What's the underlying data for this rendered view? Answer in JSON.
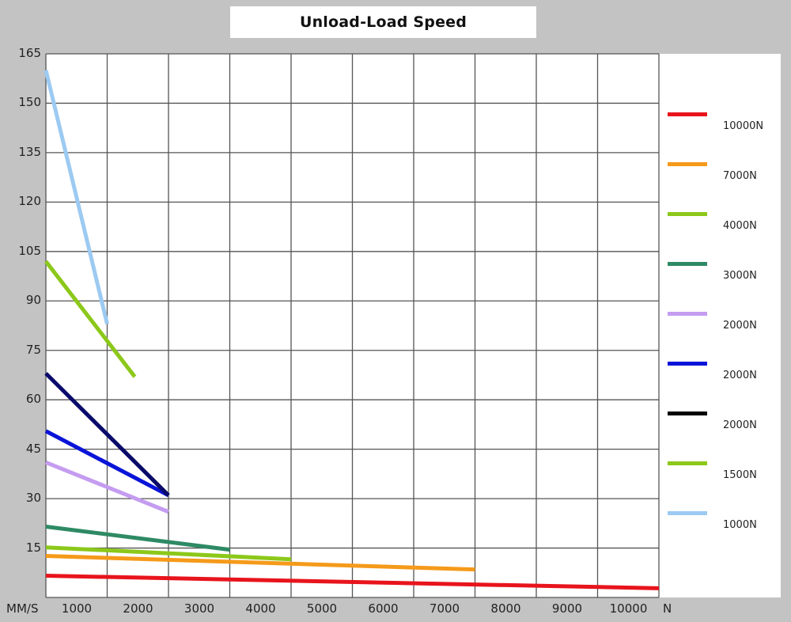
{
  "chart_data": {
    "type": "line",
    "title": "Unload-Load Speed",
    "xlabel": "N",
    "ylabel": "MM/S",
    "xlim": [
      0,
      10000
    ],
    "ylim": [
      0,
      165
    ],
    "grid": true,
    "legend_position": "right",
    "x_ticks": [
      1000,
      2000,
      3000,
      4000,
      5000,
      6000,
      7000,
      8000,
      9000,
      10000
    ],
    "x_tick_labels": [
      "1000",
      "2000",
      "3000",
      "4000",
      "5000",
      "6000",
      "7000",
      "8000",
      "9000",
      "10000"
    ],
    "y_ticks": [
      165,
      150,
      135,
      120,
      105,
      90,
      75,
      60,
      45,
      30,
      15
    ],
    "y_tick_labels": [
      "165",
      "150",
      "135",
      "120",
      "105",
      "90",
      "75",
      "60",
      "45",
      "30",
      "15"
    ],
    "series": [
      {
        "name": "10000N",
        "color": "#e8141c",
        "x": [
          0,
          10000
        ],
        "y": [
          6.6,
          2.8
        ]
      },
      {
        "name": "7000N",
        "color": "#f59a1a",
        "x": [
          0,
          7000
        ],
        "y": [
          12.6,
          8.5
        ]
      },
      {
        "name": "4000N",
        "color": "#8cc81a",
        "x": [
          0,
          4000
        ],
        "y": [
          15.2,
          11.6
        ]
      },
      {
        "name": "3000N",
        "color": "#2e8a64",
        "x": [
          0,
          3000
        ],
        "y": [
          21.5,
          14.5
        ]
      },
      {
        "name": "2000N",
        "color": "#c49cf0",
        "x": [
          0,
          2000
        ],
        "y": [
          41,
          26
        ]
      },
      {
        "name": "2000N",
        "color": "#0a14d8",
        "x": [
          0,
          2000
        ],
        "y": [
          50.5,
          31
        ]
      },
      {
        "name": "2000N",
        "color": "#0a0a6a",
        "x": [
          0,
          2000
        ],
        "y": [
          68,
          31
        ]
      },
      {
        "name": "1500N",
        "color": "#8cc81a",
        "x": [
          0,
          1450
        ],
        "y": [
          102,
          67
        ]
      },
      {
        "name": "1000N",
        "color": "#9ccaf2",
        "x": [
          0,
          1000
        ],
        "y": [
          160,
          83
        ]
      }
    ]
  },
  "axis": {
    "x_unit_left": "MM/S",
    "x_unit_right": "N"
  },
  "legend": [
    {
      "label": "10000N",
      "color": "#e8141c"
    },
    {
      "label": "7000N",
      "color": "#f59a1a"
    },
    {
      "label": "4000N",
      "color": "#8cc81a"
    },
    {
      "label": "3000N",
      "color": "#2e8a64"
    },
    {
      "label": "2000N",
      "color": "#c49cf0"
    },
    {
      "label": "2000N",
      "color": "#0a14d8"
    },
    {
      "label": "2000N",
      "color": "#000000"
    },
    {
      "label": "1500N",
      "color": "#8cc81a"
    },
    {
      "label": "1000N",
      "color": "#9ccaf2"
    }
  ]
}
